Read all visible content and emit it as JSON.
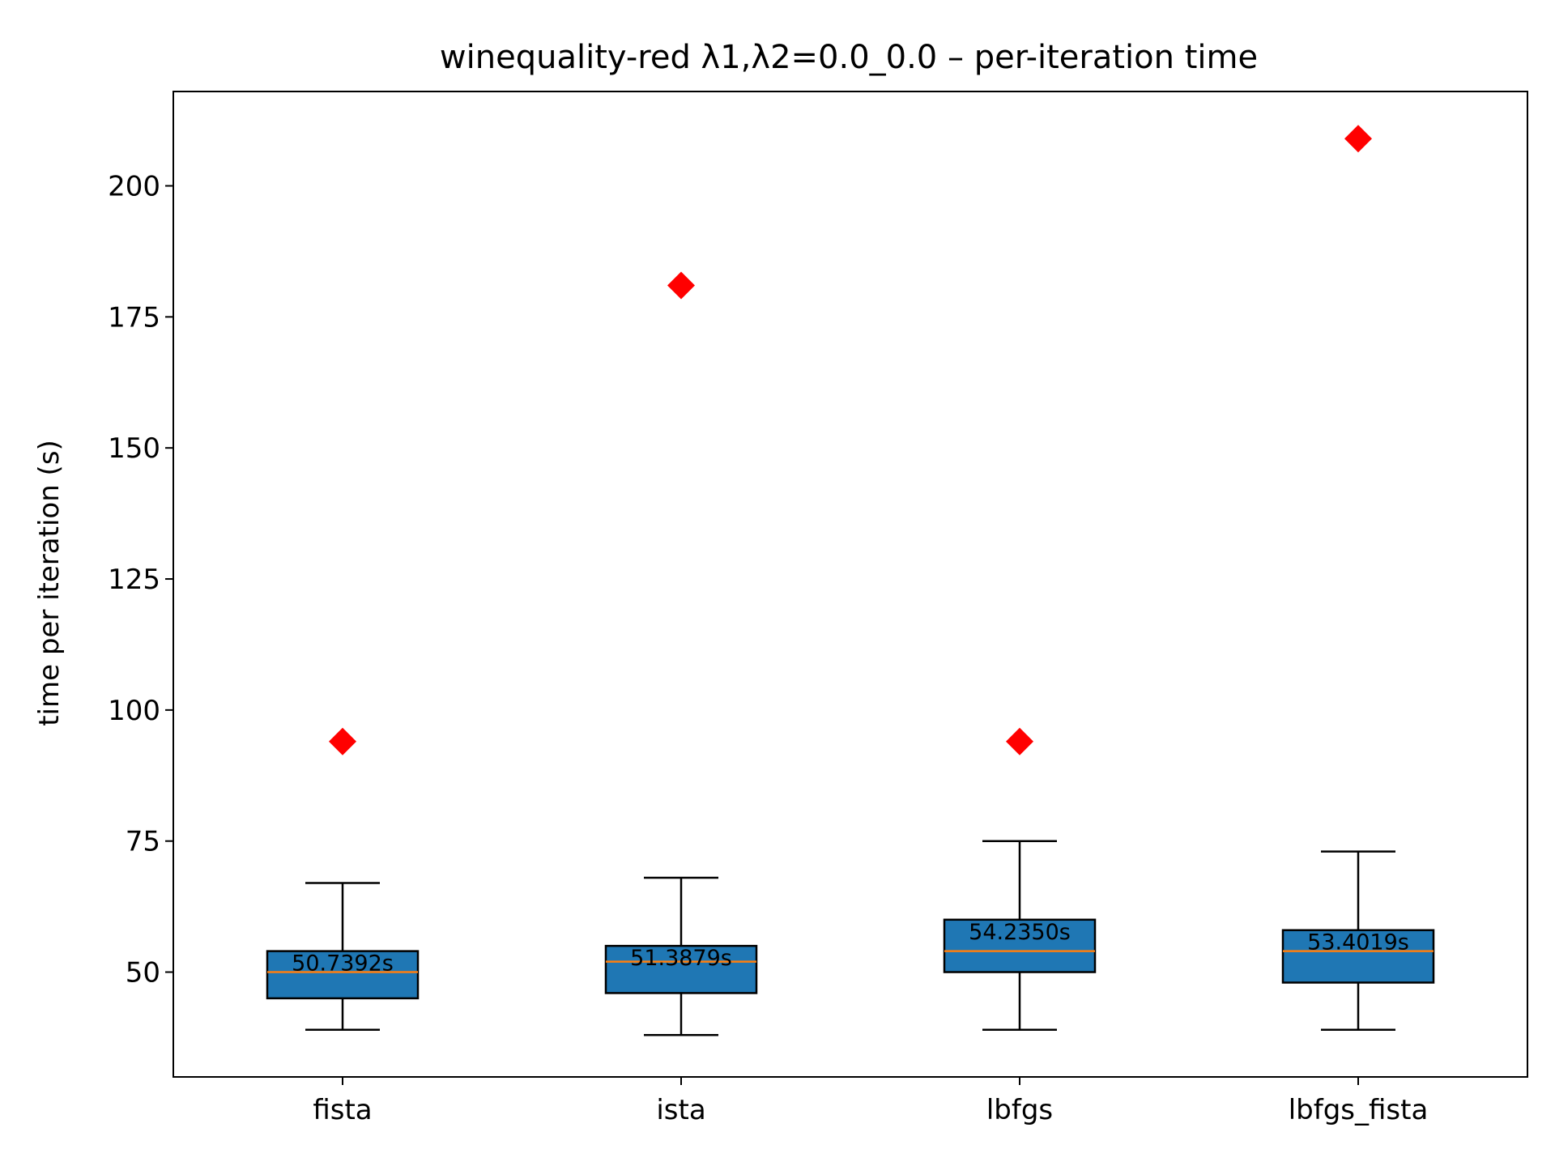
{
  "chart_data": {
    "type": "box",
    "title": "winequality-red   λ1,λ2=0.0_0.0  –  per-iteration time",
    "xlabel": "",
    "ylabel": "time per iteration (s)",
    "ylim": [
      30,
      218
    ],
    "yticks": [
      50,
      75,
      100,
      125,
      150,
      175,
      200
    ],
    "categories": [
      "fista",
      "ista",
      "lbfgs",
      "lbfgs_fista"
    ],
    "boxes": [
      {
        "name": "fista",
        "whisker_low": 39,
        "q1": 45,
        "median": 50,
        "q3": 54,
        "whisker_high": 67,
        "outliers": [
          94
        ],
        "mean_label": "50.7392s"
      },
      {
        "name": "ista",
        "whisker_low": 38,
        "q1": 46,
        "median": 52,
        "q3": 55,
        "whisker_high": 68,
        "outliers": [
          181
        ],
        "mean_label": "51.3879s"
      },
      {
        "name": "lbfgs",
        "whisker_low": 39,
        "q1": 50,
        "median": 54,
        "q3": 60,
        "whisker_high": 75,
        "outliers": [
          94
        ],
        "mean_label": "54.2350s"
      },
      {
        "name": "lbfgs_fista",
        "whisker_low": 39,
        "q1": 48,
        "median": 54,
        "q3": 58,
        "whisker_high": 73,
        "outliers": [
          209
        ],
        "mean_label": "53.4019s"
      }
    ],
    "grid": false,
    "legend": "none",
    "colors": {
      "box_fill": "#1f77b4",
      "median": "#ff7f0e",
      "outlier": "#ff0000",
      "line": "#000000"
    }
  }
}
